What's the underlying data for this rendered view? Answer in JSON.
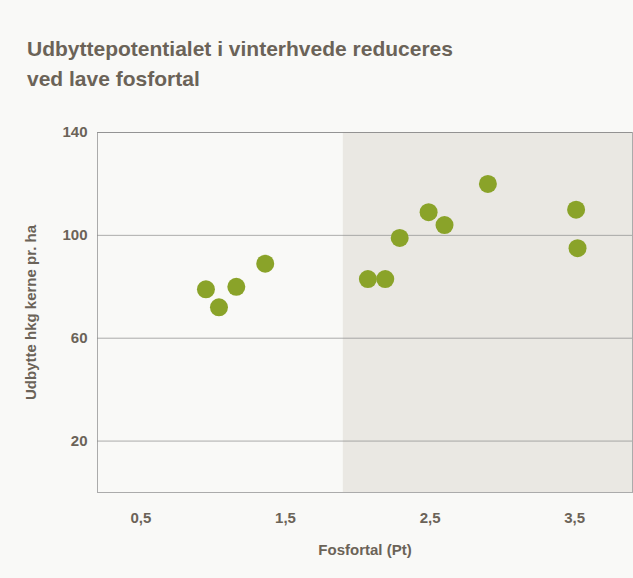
{
  "chart_data": {
    "type": "scatter",
    "title": "Udbyttepotentialet i vinterhvede reduceres ved lave fosfortal",
    "x_label": "Fosfortal (Pt)",
    "y_label": "Udbytte hkg kerne pr. ha",
    "x": [
      0.95,
      1.04,
      1.16,
      1.36,
      2.07,
      2.19,
      2.29,
      2.49,
      2.6,
      2.9,
      3.51,
      3.52
    ],
    "values": [
      79,
      72,
      80,
      89,
      83,
      83,
      99,
      109,
      104,
      120,
      110,
      95
    ],
    "color": "#8aa329",
    "marker": "circle",
    "xlim": [
      0.2,
      3.9
    ],
    "xticks": [
      {
        "value": 0.5,
        "label": "0,5"
      },
      {
        "value": 1.5,
        "label": "1,5"
      },
      {
        "value": 2.5,
        "label": "2,5"
      },
      {
        "value": 3.5,
        "label": "3,5"
      }
    ],
    "ylim": [
      0,
      140
    ],
    "yticks": [
      20,
      60,
      100,
      140
    ],
    "grid": true,
    "highlight_x": [
      1.9,
      3.9
    ]
  }
}
